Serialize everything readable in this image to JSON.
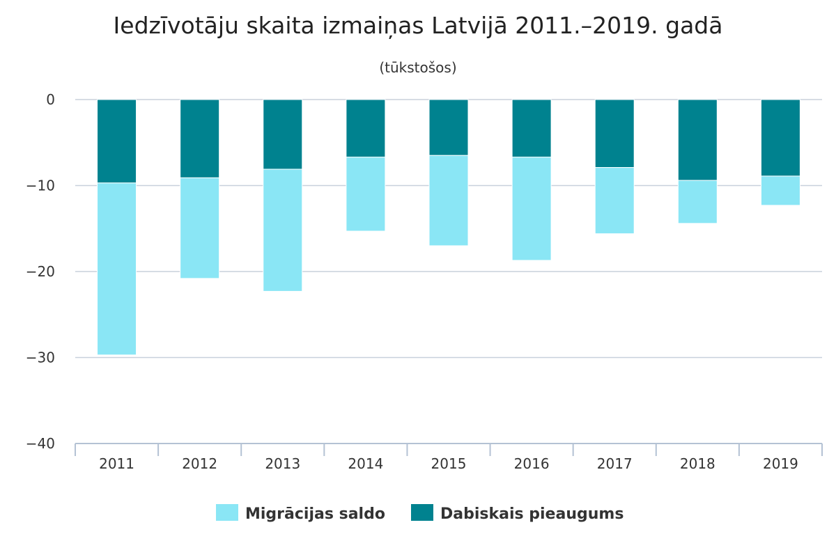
{
  "chart_data": {
    "type": "bar",
    "stacked": true,
    "title": "Iedzīvotāju skaita izmaiņas Latvijā 2011.–2019. gadā",
    "subtitle": "(tūkstošos)",
    "xlabel": "",
    "ylabel": "",
    "categories": [
      "2011",
      "2012",
      "2013",
      "2014",
      "2015",
      "2016",
      "2017",
      "2018",
      "2019"
    ],
    "ylim": [
      -40,
      0
    ],
    "yticks": [
      0,
      -10,
      -20,
      -30,
      -40
    ],
    "ytick_labels": [
      "0",
      "−10",
      "−20",
      "−30",
      "−40"
    ],
    "grid": true,
    "legend_position": "bottom-center",
    "series": [
      {
        "name": "Dabiskais pieaugums",
        "color": "#00828f",
        "values": [
          -9.7,
          -9.1,
          -8.1,
          -6.7,
          -6.5,
          -6.7,
          -7.9,
          -9.4,
          -8.9
        ]
      },
      {
        "name": "Migrācijas saldo",
        "color": "#8ae6f5",
        "values": [
          -20.0,
          -11.7,
          -14.2,
          -8.6,
          -10.5,
          -12.0,
          -7.7,
          -5.0,
          -3.4
        ]
      }
    ],
    "legend_order": [
      "Migrācijas saldo",
      "Dabiskais pieaugums"
    ]
  }
}
